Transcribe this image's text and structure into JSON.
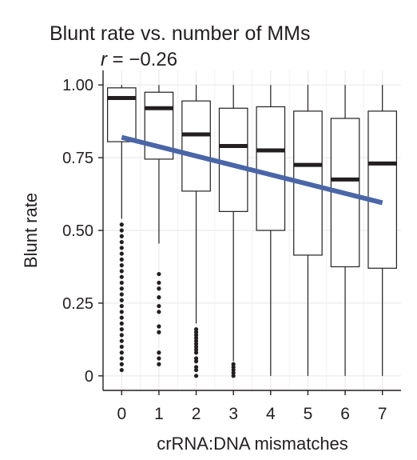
{
  "chart_data": {
    "type": "box",
    "title": "Blunt rate vs. number of MMs",
    "annotation": {
      "symbol": "r",
      "text": " = −0.26"
    },
    "xlabel": "crRNA:DNA mismatches",
    "ylabel": "Blunt rate",
    "ylim": [
      -0.05,
      1.05
    ],
    "x_ticks": [
      "0",
      "1",
      "2",
      "3",
      "4",
      "5",
      "6",
      "7"
    ],
    "y_ticks": [
      {
        "value": 0,
        "label": "0"
      },
      {
        "value": 0.25,
        "label": "0.25"
      },
      {
        "value": 0.5,
        "label": "0.50"
      },
      {
        "value": 0.75,
        "label": "0.75"
      },
      {
        "value": 1.0,
        "label": "1.00"
      }
    ],
    "grid": true,
    "boxes": [
      {
        "category": "0",
        "q1": 0.805,
        "median": 0.955,
        "q3": 0.99,
        "whisker_low": 0.54,
        "whisker_high": 1.0,
        "outliers": [
          0.02,
          0.04,
          0.06,
          0.08,
          0.1,
          0.12,
          0.14,
          0.16,
          0.18,
          0.2,
          0.22,
          0.24,
          0.26,
          0.28,
          0.3,
          0.32,
          0.34,
          0.36,
          0.38,
          0.4,
          0.42,
          0.44,
          0.46,
          0.48,
          0.5,
          0.52
        ]
      },
      {
        "category": "1",
        "q1": 0.745,
        "median": 0.92,
        "q3": 0.975,
        "whisker_low": 0.455,
        "whisker_high": 1.0,
        "outliers": [
          0.04,
          0.06,
          0.08,
          0.15,
          0.17,
          0.22,
          0.24,
          0.27,
          0.3,
          0.32,
          0.35
        ]
      },
      {
        "category": "2",
        "q1": 0.635,
        "median": 0.83,
        "q3": 0.945,
        "whisker_low": 0.18,
        "whisker_high": 1.0,
        "outliers": [
          0.0,
          0.02,
          0.03,
          0.05,
          0.06,
          0.08,
          0.09,
          0.1,
          0.11,
          0.12,
          0.13,
          0.14,
          0.15,
          0.16
        ]
      },
      {
        "category": "3",
        "q1": 0.565,
        "median": 0.79,
        "q3": 0.92,
        "whisker_low": 0.05,
        "whisker_high": 1.0,
        "outliers": [
          0.0,
          0.01,
          0.02,
          0.03,
          0.04
        ]
      },
      {
        "category": "4",
        "q1": 0.5,
        "median": 0.775,
        "q3": 0.925,
        "whisker_low": 0.0,
        "whisker_high": 1.0,
        "outliers": []
      },
      {
        "category": "5",
        "q1": 0.415,
        "median": 0.725,
        "q3": 0.91,
        "whisker_low": 0.0,
        "whisker_high": 1.0,
        "outliers": []
      },
      {
        "category": "6",
        "q1": 0.375,
        "median": 0.675,
        "q3": 0.885,
        "whisker_low": 0.0,
        "whisker_high": 1.0,
        "outliers": []
      },
      {
        "category": "7",
        "q1": 0.37,
        "median": 0.73,
        "q3": 0.91,
        "whisker_low": 0.0,
        "whisker_high": 1.0,
        "outliers": []
      }
    ],
    "trend_line": {
      "x": [
        "0",
        "7"
      ],
      "y": [
        0.82,
        0.595
      ],
      "color": "#4a66a8"
    },
    "colors": {
      "box_fill": "#ffffff",
      "box_stroke": "#231f20",
      "median": "#231f20",
      "outlier": "#231f20",
      "grid": "#e6e6e6",
      "trend": "#4a66a8"
    }
  }
}
